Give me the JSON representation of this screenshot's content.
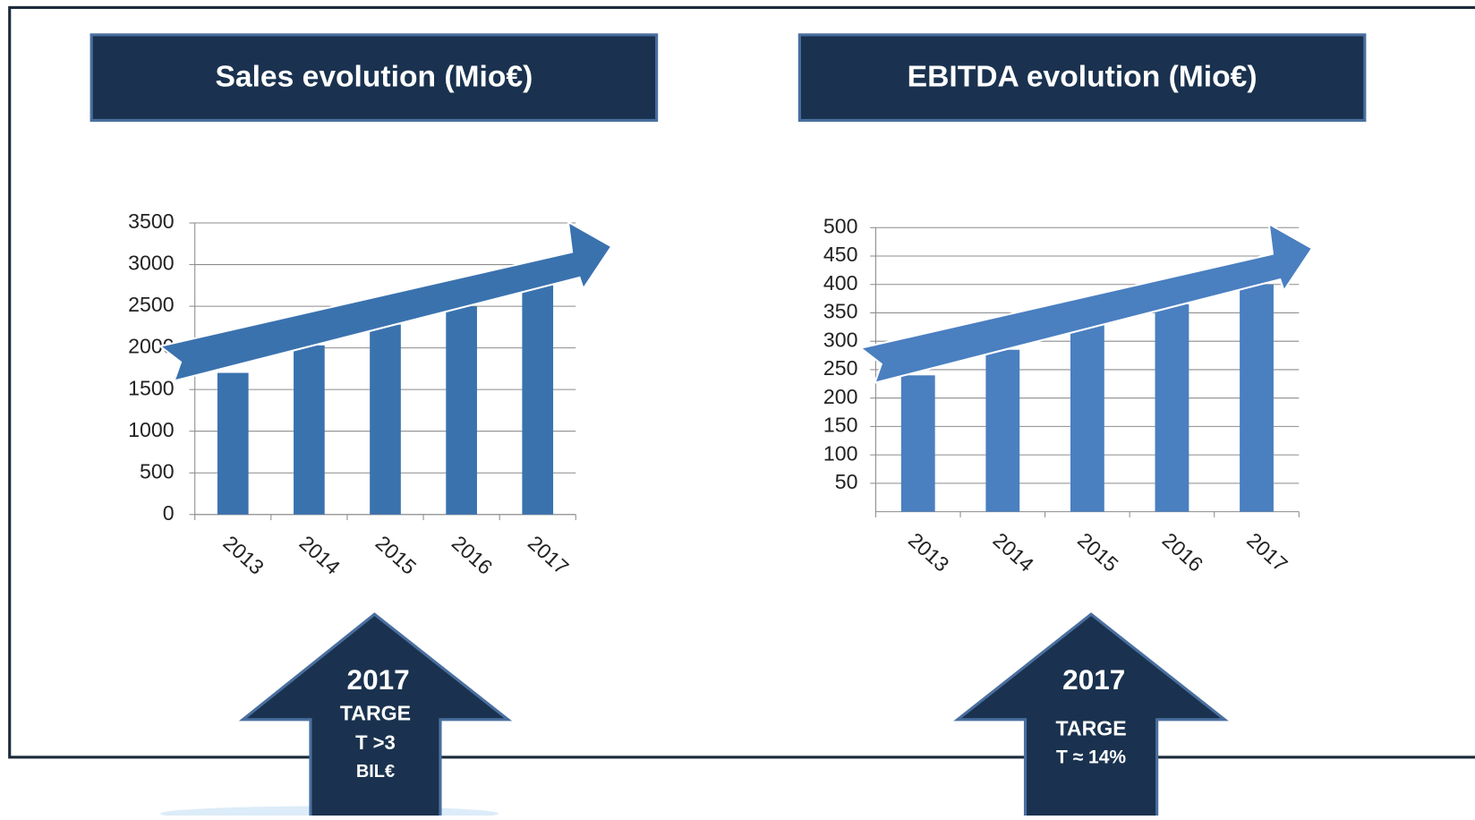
{
  "chart_data": [
    {
      "type": "bar",
      "title": "Sales evolution (Mio€)",
      "categories": [
        "2013",
        "2014",
        "2015",
        "2016",
        "2017"
      ],
      "values": [
        1700,
        2030,
        2280,
        2500,
        2750
      ],
      "color": "#3a72ae",
      "ylim": [
        0,
        3500
      ],
      "yticks": [
        0,
        500,
        1000,
        1500,
        2000,
        2500,
        3000,
        3500
      ],
      "grid": true,
      "target": {
        "year": "2017",
        "lines": [
          "TARGE",
          "T >3",
          "BIL€"
        ]
      }
    },
    {
      "type": "bar",
      "title": "EBITDA evolution (Mio€)",
      "categories": [
        "2013",
        "2014",
        "2015",
        "2016",
        "2017"
      ],
      "values": [
        240,
        285,
        330,
        365,
        400
      ],
      "color": "#4a7fc0",
      "ylim": [
        0,
        500
      ],
      "yticks": [
        50,
        100,
        150,
        200,
        250,
        300,
        350,
        400,
        450,
        500
      ],
      "grid": true,
      "target": {
        "year": "2017",
        "lines": [
          "TARGE",
          "T ≈ 14%"
        ]
      }
    }
  ]
}
